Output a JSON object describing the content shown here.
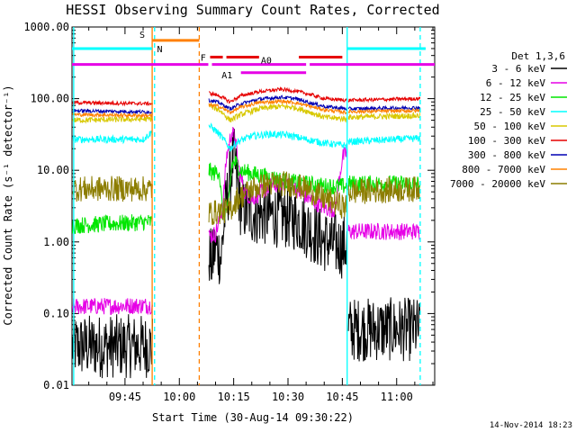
{
  "chart_data": {
    "type": "line",
    "title": "HESSI Observing Summary Count Rates, Corrected",
    "xlabel": "Start Time (30-Aug-14 09:30:22)",
    "ylabel": "Corrected Count Rate (s⁻¹ detector⁻¹)",
    "footer": "14-Nov-2014 18:23",
    "y_scale": "log",
    "ylim": [
      0.01,
      1000
    ],
    "y_ticks": [
      {
        "value": 1000,
        "label": "1000.00"
      },
      {
        "value": 100,
        "label": "100.00"
      },
      {
        "value": 10,
        "label": "10.00"
      },
      {
        "value": 1,
        "label": "1.00"
      },
      {
        "value": 0.1,
        "label": "0.10"
      },
      {
        "value": 0.01,
        "label": "0.01"
      }
    ],
    "x_range_minutes": [
      "09:30:22",
      "11:10:30"
    ],
    "x_ticks": [
      {
        "time": "09:45",
        "label": "09:45"
      },
      {
        "time": "10:00",
        "label": "10:00"
      },
      {
        "time": "10:15",
        "label": "10:15"
      },
      {
        "time": "10:30",
        "label": "10:30"
      },
      {
        "time": "10:45",
        "label": "10:45"
      },
      {
        "time": "11:00",
        "label": "11:00"
      }
    ],
    "legend": {
      "placement": "right",
      "header": "Det 1,3,6",
      "entries": [
        {
          "label": "3 - 6 keV",
          "color": "#000000"
        },
        {
          "label": "6 - 12 keV",
          "color": "#e600e6"
        },
        {
          "label": "12 - 25 keV",
          "color": "#00e600"
        },
        {
          "label": "25 - 50 keV",
          "color": "#00ffff"
        },
        {
          "label": "50 - 100 keV",
          "color": "#d8c800"
        },
        {
          "label": "100 - 300 keV",
          "color": "#e60000"
        },
        {
          "label": "300 - 800 keV",
          "color": "#0000b4"
        },
        {
          "label": "800 - 7000 keV",
          "color": "#ff8000"
        },
        {
          "label": "7000 - 20000 keV",
          "color": "#8c7d00"
        }
      ]
    },
    "gaps": [
      [
        "09:53:10",
        "10:08:10"
      ],
      [
        "10:46:30",
        "10:46:30"
      ]
    ],
    "vertical_markers": [
      {
        "time": "09:30:50",
        "color": "#00ffff",
        "style": "solid"
      },
      {
        "time": "09:52:30",
        "color": "#ff8000",
        "style": "solid"
      },
      {
        "time": "09:53:10",
        "color": "#00ffff",
        "style": "dashed"
      },
      {
        "time": "10:05:30",
        "color": "#ff8000",
        "style": "dashed"
      },
      {
        "time": "10:46:20",
        "color": "#00ffff",
        "style": "solid"
      },
      {
        "time": "11:06:30",
        "color": "#00ffff",
        "style": "dashed"
      }
    ],
    "flag_bars": [
      {
        "label": "",
        "color": "#00ffff",
        "y": 500,
        "segments": [
          [
            "09:30:22",
            "09:52:30"
          ],
          [
            "10:46:20",
            "11:08:00"
          ]
        ]
      },
      {
        "label": "N",
        "color": "#00ffff",
        "y": 500,
        "segments": []
      },
      {
        "label": "S",
        "color": "#ff8000",
        "y": 650,
        "segments": [
          [
            "09:52:30",
            "10:05:30"
          ]
        ]
      },
      {
        "label": "F",
        "color": "#e60000",
        "y": 380,
        "segments": [
          [
            "10:08:30",
            "10:12:00"
          ],
          [
            "10:13:00",
            "10:22:00"
          ],
          [
            "10:33:00",
            "10:45:00"
          ]
        ]
      },
      {
        "label": "A0",
        "color": "#e600e6",
        "y": 300,
        "segments": [
          [
            "09:30:22",
            "10:08:00"
          ],
          [
            "10:09:00",
            "10:35:00"
          ],
          [
            "10:36:00",
            "11:10:30"
          ]
        ]
      },
      {
        "label": "A1",
        "color": "#e600e6",
        "y": 230,
        "segments": [
          [
            "10:17:00",
            "10:35:00"
          ]
        ]
      }
    ],
    "series": [
      {
        "name": "3 - 6 keV",
        "color": "#000000",
        "noise": 0.45,
        "points": [
          [
            "09:30:30",
            0.035
          ],
          [
            "09:52:40",
            0.035
          ],
          [
            "10:08:10",
            0.7
          ],
          [
            "10:09:00",
            0.5
          ],
          [
            "10:10:00",
            0.9
          ],
          [
            "10:11:30",
            0.6
          ],
          [
            "10:12:30",
            2.2
          ],
          [
            "10:14:00",
            8
          ],
          [
            "10:15:00",
            16
          ],
          [
            "10:16:00",
            7
          ],
          [
            "10:17:00",
            3
          ],
          [
            "10:20:00",
            2.5
          ],
          [
            "10:25:00",
            2.4
          ],
          [
            "10:30:00",
            2.2
          ],
          [
            "10:33:00",
            2.0
          ],
          [
            "10:36:00",
            1.5
          ],
          [
            "10:39:00",
            1.1
          ],
          [
            "10:42:00",
            0.95
          ],
          [
            "10:45:00",
            0.85
          ],
          [
            "10:46:20",
            0.9
          ],
          [
            "10:46:40",
            0.06
          ],
          [
            "11:06:30",
            0.06
          ]
        ]
      },
      {
        "name": "6 - 12 keV",
        "color": "#e600e6",
        "noise": 0.12,
        "points": [
          [
            "09:30:30",
            0.125
          ],
          [
            "09:52:40",
            0.13
          ],
          [
            "10:08:10",
            1.2
          ],
          [
            "10:10:00",
            1.3
          ],
          [
            "10:12:00",
            3
          ],
          [
            "10:13:00",
            15
          ],
          [
            "10:14:30",
            35
          ],
          [
            "10:15:30",
            25
          ],
          [
            "10:16:30",
            10
          ],
          [
            "10:18:00",
            5
          ],
          [
            "10:20:00",
            4
          ],
          [
            "10:25:00",
            6
          ],
          [
            "10:30:00",
            7
          ],
          [
            "10:33:00",
            5
          ],
          [
            "10:36:00",
            4
          ],
          [
            "10:40:00",
            3
          ],
          [
            "10:43:00",
            2.8
          ],
          [
            "10:45:00",
            15
          ],
          [
            "10:46:20",
            18
          ],
          [
            "10:46:40",
            1.4
          ],
          [
            "11:06:30",
            1.4
          ]
        ]
      },
      {
        "name": "12 - 25 keV",
        "color": "#00e600",
        "noise": 0.12,
        "points": [
          [
            "09:30:30",
            1.7
          ],
          [
            "09:52:40",
            1.9
          ],
          [
            "10:08:10",
            10
          ],
          [
            "10:09:30",
            9
          ],
          [
            "10:11:00",
            10
          ],
          [
            "10:12:00",
            2.3
          ],
          [
            "10:13:30",
            3
          ],
          [
            "10:14:30",
            12
          ],
          [
            "10:15:30",
            13
          ],
          [
            "10:17:00",
            10
          ],
          [
            "10:20:00",
            9
          ],
          [
            "10:25:00",
            8
          ],
          [
            "10:30:00",
            7
          ],
          [
            "10:35:00",
            6.5
          ],
          [
            "10:40:00",
            6
          ],
          [
            "10:46:20",
            6
          ],
          [
            "10:46:40",
            6.5
          ],
          [
            "11:06:30",
            6.5
          ]
        ]
      },
      {
        "name": "25 - 50 keV",
        "color": "#00ffff",
        "noise": 0.05,
        "points": [
          [
            "09:30:30",
            27
          ],
          [
            "09:50:00",
            27
          ],
          [
            "09:52:40",
            35
          ],
          [
            "10:08:10",
            42
          ],
          [
            "10:10:00",
            36
          ],
          [
            "10:12:00",
            28
          ],
          [
            "10:14:00",
            20
          ],
          [
            "10:16:00",
            25
          ],
          [
            "10:20:00",
            30
          ],
          [
            "10:25:00",
            32
          ],
          [
            "10:30:00",
            31
          ],
          [
            "10:35:00",
            27
          ],
          [
            "10:40:00",
            24
          ],
          [
            "10:46:20",
            22
          ],
          [
            "10:46:40",
            25
          ],
          [
            "11:06:30",
            28
          ]
        ]
      },
      {
        "name": "50 - 100 keV",
        "color": "#d8c800",
        "noise": 0.04,
        "points": [
          [
            "09:30:30",
            50
          ],
          [
            "09:52:40",
            52
          ],
          [
            "10:08:10",
            80
          ],
          [
            "10:11:00",
            70
          ],
          [
            "10:14:00",
            50
          ],
          [
            "10:17:00",
            60
          ],
          [
            "10:22:00",
            72
          ],
          [
            "10:28:00",
            78
          ],
          [
            "10:32:00",
            75
          ],
          [
            "10:36:00",
            65
          ],
          [
            "10:40:00",
            55
          ],
          [
            "10:46:20",
            52
          ],
          [
            "10:46:40",
            55
          ],
          [
            "11:06:30",
            58
          ]
        ]
      },
      {
        "name": "100 - 300 keV",
        "color": "#e60000",
        "noise": 0.025,
        "points": [
          [
            "09:30:30",
            88
          ],
          [
            "09:52:40",
            85
          ],
          [
            "10:08:10",
            120
          ],
          [
            "10:11:00",
            110
          ],
          [
            "10:14:00",
            90
          ],
          [
            "10:17:00",
            110
          ],
          [
            "10:22:00",
            125
          ],
          [
            "10:28:00",
            135
          ],
          [
            "10:32:00",
            128
          ],
          [
            "10:36:00",
            115
          ],
          [
            "10:40:00",
            100
          ],
          [
            "10:46:20",
            95
          ],
          [
            "10:46:40",
            95
          ],
          [
            "11:06:30",
            100
          ]
        ]
      },
      {
        "name": "300 - 800 keV",
        "color": "#0000b4",
        "noise": 0.025,
        "points": [
          [
            "09:30:30",
            68
          ],
          [
            "09:52:40",
            65
          ],
          [
            "10:08:10",
            95
          ],
          [
            "10:11:00",
            88
          ],
          [
            "10:14:00",
            72
          ],
          [
            "10:17:00",
            85
          ],
          [
            "10:22:00",
            98
          ],
          [
            "10:28:00",
            105
          ],
          [
            "10:32:00",
            100
          ],
          [
            "10:36:00",
            88
          ],
          [
            "10:40:00",
            78
          ],
          [
            "10:46:20",
            72
          ],
          [
            "10:46:40",
            72
          ],
          [
            "11:06:30",
            75
          ]
        ]
      },
      {
        "name": "800 - 7000 keV",
        "color": "#ff8000",
        "noise": 0.025,
        "points": [
          [
            "09:30:30",
            60
          ],
          [
            "09:52:40",
            58
          ],
          [
            "10:08:10",
            82
          ],
          [
            "10:11:00",
            78
          ],
          [
            "10:14:00",
            64
          ],
          [
            "10:17:00",
            76
          ],
          [
            "10:22:00",
            88
          ],
          [
            "10:28:00",
            92
          ],
          [
            "10:32:00",
            88
          ],
          [
            "10:36:00",
            78
          ],
          [
            "10:40:00",
            70
          ],
          [
            "10:46:20",
            64
          ],
          [
            "10:46:40",
            66
          ],
          [
            "11:06:30",
            68
          ]
        ]
      },
      {
        "name": "7000 - 20000 keV",
        "color": "#8c7d00",
        "noise": 0.18,
        "points": [
          [
            "09:30:30",
            5.5
          ],
          [
            "09:52:40",
            5.5
          ],
          [
            "10:08:10",
            2.5
          ],
          [
            "10:14:00",
            2.8
          ],
          [
            "10:16:00",
            4
          ],
          [
            "10:20:00",
            5.5
          ],
          [
            "10:25:00",
            6.5
          ],
          [
            "10:30:00",
            6.5
          ],
          [
            "10:35:00",
            5.5
          ],
          [
            "10:40:00",
            4
          ],
          [
            "10:46:20",
            3
          ],
          [
            "10:46:40",
            5
          ],
          [
            "11:06:30",
            5.5
          ]
        ]
      }
    ]
  }
}
